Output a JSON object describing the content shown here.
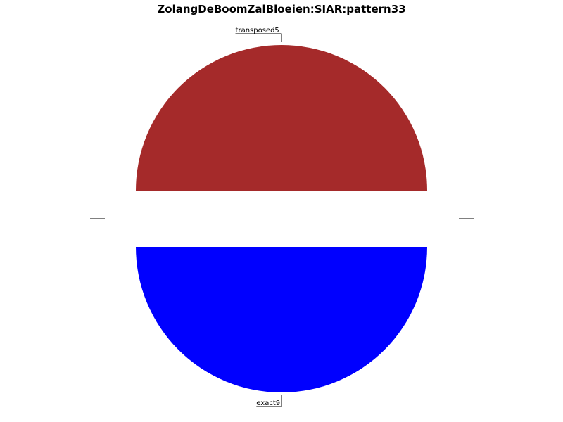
{
  "chart_data": {
    "type": "pie",
    "title": "ZolangDeBoomZalBloeien:SIAR:pattern33",
    "labels": [
      "transposed5",
      "exact9"
    ],
    "values": [
      50,
      50
    ],
    "colors": [
      "#a52a2a",
      "#0000ff"
    ],
    "exploded": true
  }
}
